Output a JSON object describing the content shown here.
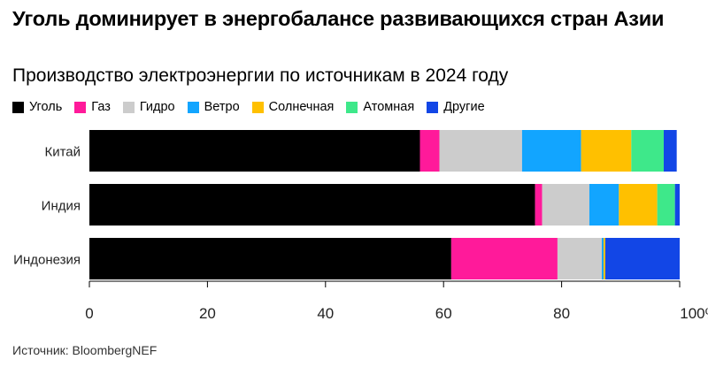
{
  "title": "Уголь доминирует в энергобалансе развивающихся стран Азии",
  "subtitle": "Производство электроэнергии по источникам в 2024 году",
  "source": "Источник: BloombergNEF",
  "colors": {
    "Уголь": "#000000",
    "Газ": "#ff1a9a",
    "Гидро": "#cccccc",
    "Ветро": "#12a5ff",
    "Солнечная": "#ffc000",
    "Атомная": "#3ee88a",
    "Другие": "#1246e6"
  },
  "chart_data": {
    "type": "bar",
    "orientation": "horizontal",
    "stacked": true,
    "title": "Уголь доминирует в энергобалансе развивающихся стран Азии",
    "subtitle": "Производство электроэнергии по источникам в 2024 году",
    "categories": [
      "Китай",
      "Индия",
      "Индонезия"
    ],
    "series": [
      {
        "name": "Уголь",
        "values": [
          56,
          75.5,
          61.3
        ]
      },
      {
        "name": "Газ",
        "values": [
          3.3,
          1.2,
          18
        ]
      },
      {
        "name": "Гидро",
        "values": [
          14,
          8,
          7.5
        ]
      },
      {
        "name": "Ветро",
        "values": [
          10,
          5,
          0.3
        ]
      },
      {
        "name": "Солнечная",
        "values": [
          8.5,
          6.5,
          0.3
        ]
      },
      {
        "name": "Атомная",
        "values": [
          5.5,
          3,
          0
        ]
      },
      {
        "name": "Другие",
        "values": [
          2.2,
          0.8,
          12.6
        ]
      }
    ],
    "xlim": [
      0,
      100
    ],
    "xticks": [
      "0",
      "20",
      "40",
      "60",
      "80",
      "100%"
    ],
    "xtick_values": [
      0,
      20,
      40,
      60,
      80,
      100
    ],
    "legend_position": "top-left",
    "grid": false
  }
}
